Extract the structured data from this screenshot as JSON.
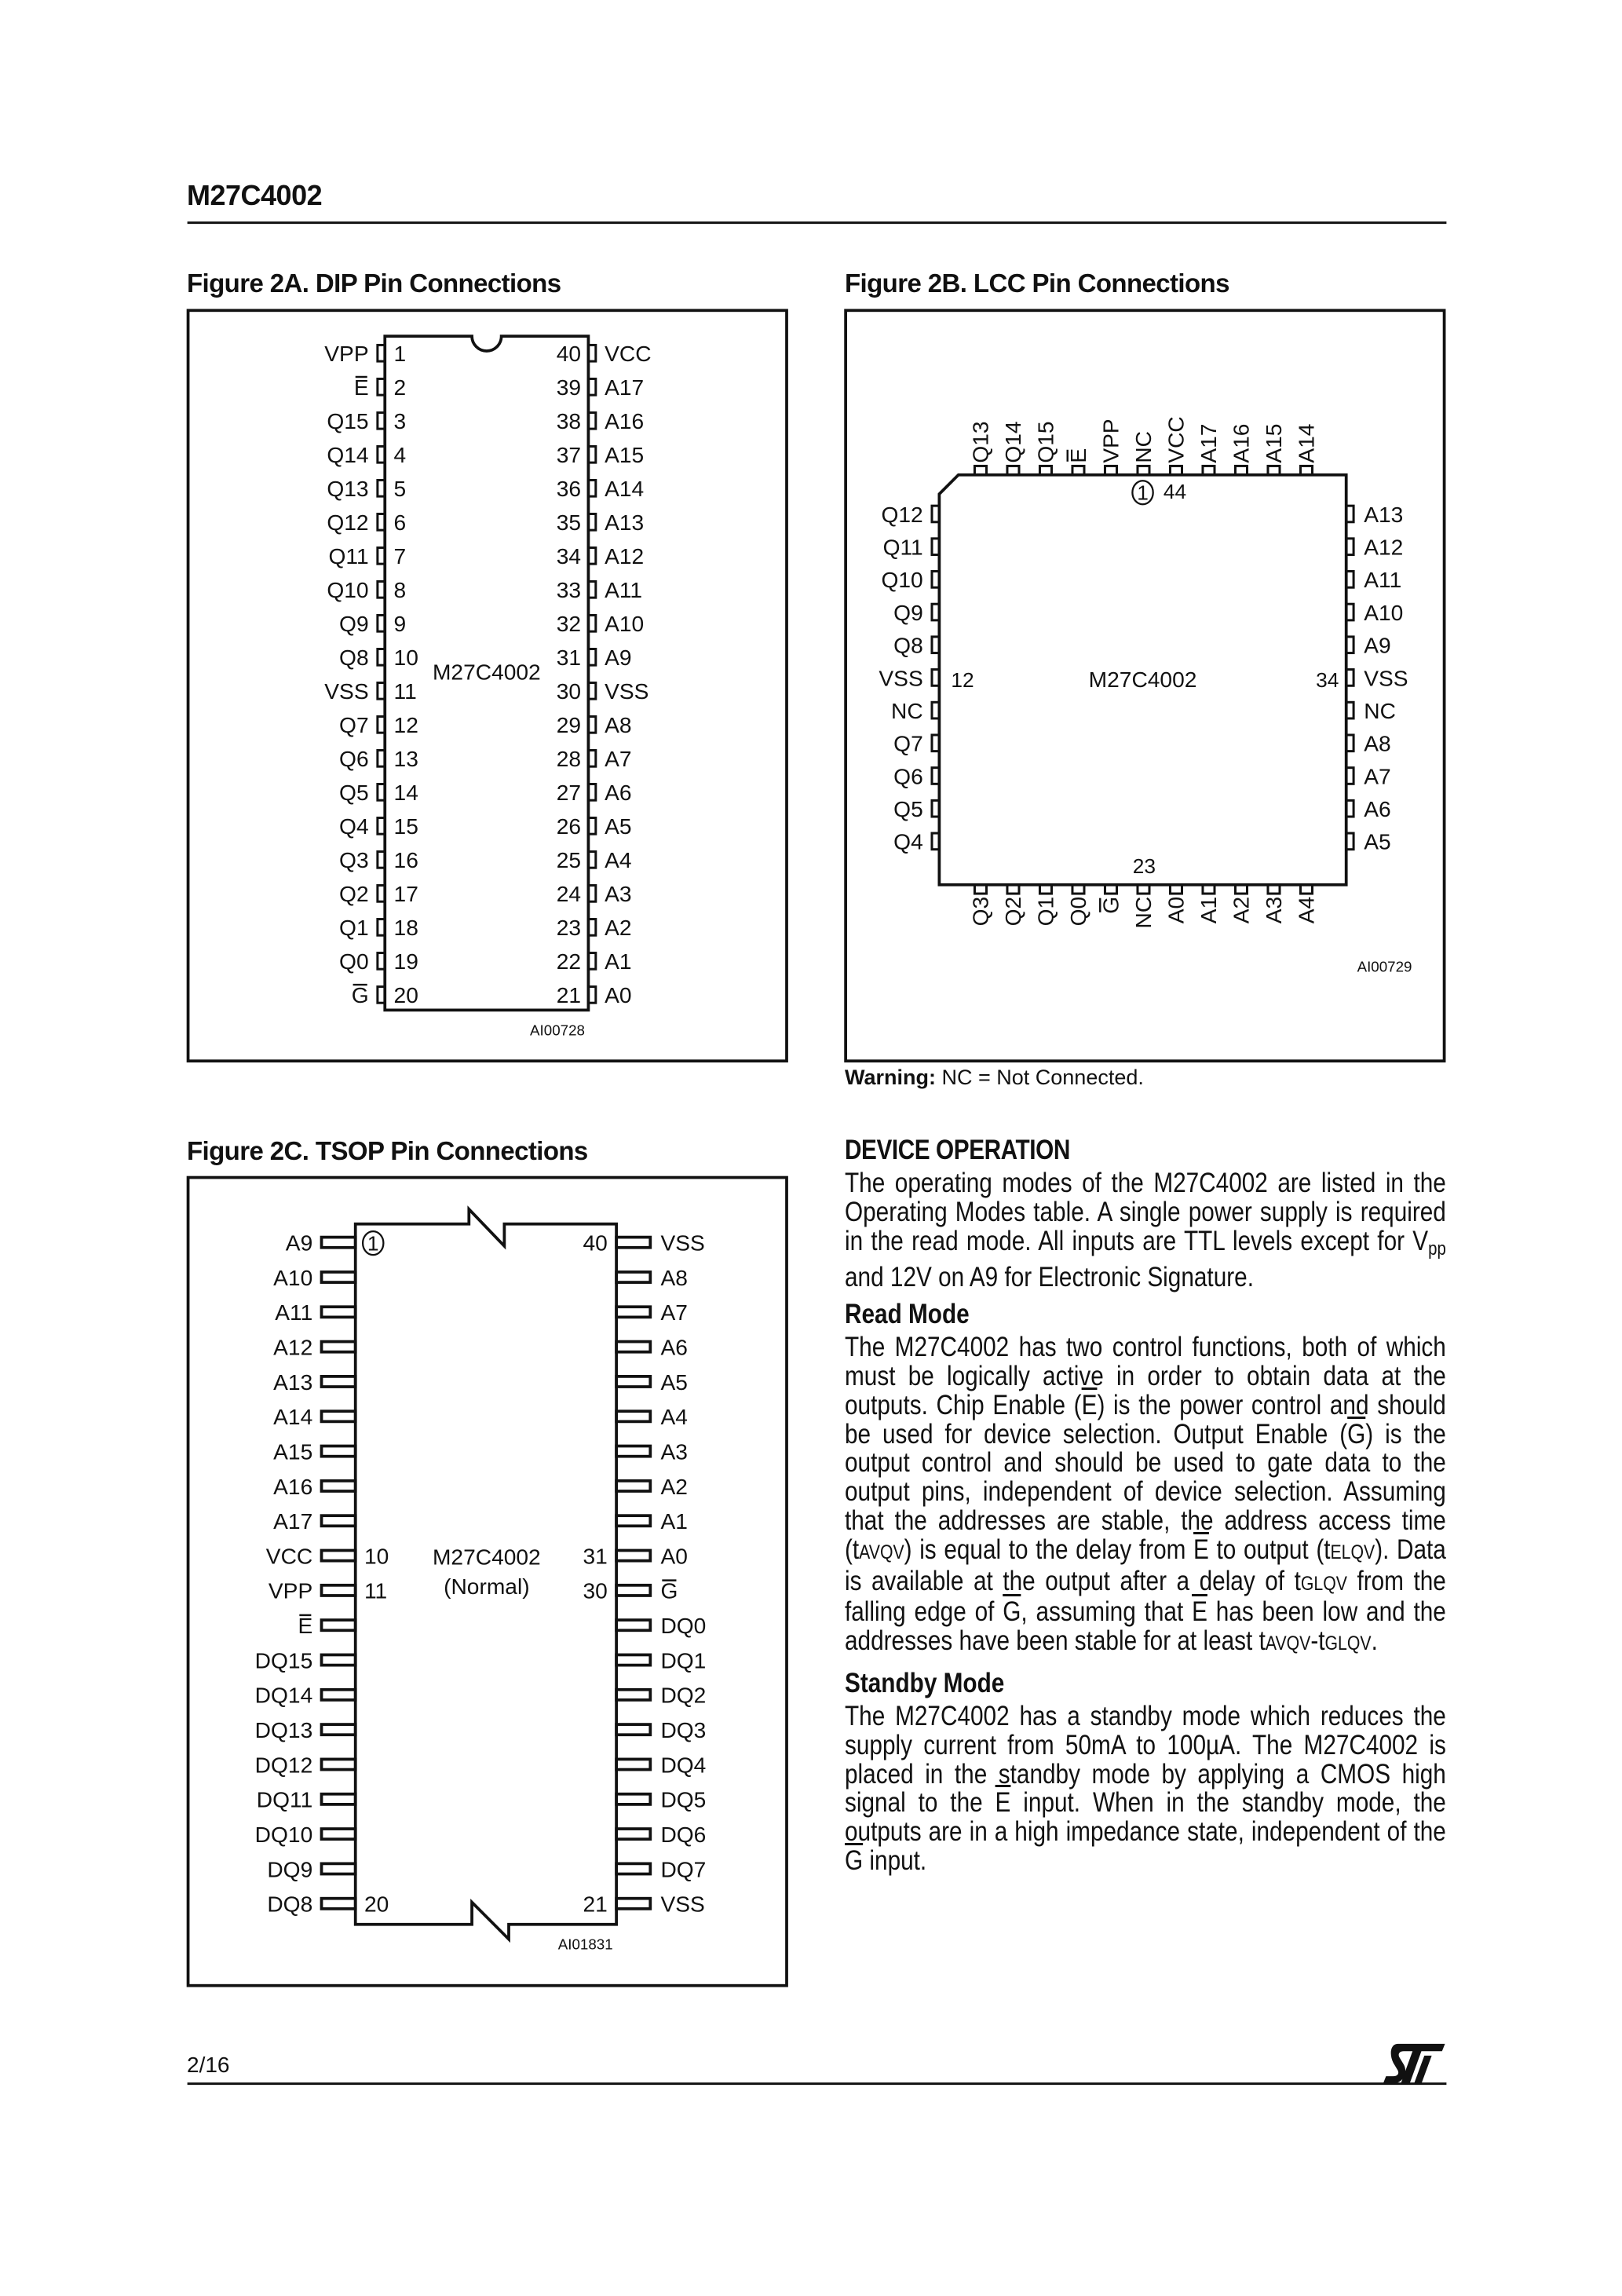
{
  "header": {
    "title": "M27C4002"
  },
  "overbar_signals": [
    "E",
    "G"
  ],
  "fig2a": {
    "title": "Figure 2A.  DIP Pin Connections",
    "chip_label": "M27C4002",
    "code": "AI00728",
    "left_pins": [
      [
        "1",
        "VPP"
      ],
      [
        "2",
        "E"
      ],
      [
        "3",
        "Q15"
      ],
      [
        "4",
        "Q14"
      ],
      [
        "5",
        "Q13"
      ],
      [
        "6",
        "Q12"
      ],
      [
        "7",
        "Q11"
      ],
      [
        "8",
        "Q10"
      ],
      [
        "9",
        "Q9"
      ],
      [
        "10",
        "Q8"
      ],
      [
        "11",
        "VSS"
      ],
      [
        "12",
        "Q7"
      ],
      [
        "13",
        "Q6"
      ],
      [
        "14",
        "Q5"
      ],
      [
        "15",
        "Q4"
      ],
      [
        "16",
        "Q3"
      ],
      [
        "17",
        "Q2"
      ],
      [
        "18",
        "Q1"
      ],
      [
        "19",
        "Q0"
      ],
      [
        "20",
        "G"
      ]
    ],
    "right_pins": [
      [
        "40",
        "VCC"
      ],
      [
        "39",
        "A17"
      ],
      [
        "38",
        "A16"
      ],
      [
        "37",
        "A15"
      ],
      [
        "36",
        "A14"
      ],
      [
        "35",
        "A13"
      ],
      [
        "34",
        "A12"
      ],
      [
        "33",
        "A11"
      ],
      [
        "32",
        "A10"
      ],
      [
        "31",
        "A9"
      ],
      [
        "30",
        "VSS"
      ],
      [
        "29",
        "A8"
      ],
      [
        "28",
        "A7"
      ],
      [
        "27",
        "A6"
      ],
      [
        "26",
        "A5"
      ],
      [
        "25",
        "A4"
      ],
      [
        "24",
        "A3"
      ],
      [
        "23",
        "A2"
      ],
      [
        "22",
        "A1"
      ],
      [
        "21",
        "A0"
      ]
    ]
  },
  "fig2b": {
    "title": "Figure 2B.  LCC Pin Connections",
    "chip_label": "M27C4002",
    "code": "AI00729",
    "top_pins": [
      "Q13",
      "Q14",
      "Q15",
      "E",
      "VPP",
      "NC",
      "VCC",
      "A17",
      "A16",
      "A15",
      "A14"
    ],
    "left_pins": [
      "Q12",
      "Q11",
      "Q10",
      "Q9",
      "Q8",
      "VSS",
      "NC",
      "Q7",
      "Q6",
      "Q5",
      "Q4"
    ],
    "right_pins": [
      "A13",
      "A12",
      "A11",
      "A10",
      "A9",
      "VSS",
      "NC",
      "A8",
      "A7",
      "A6",
      "A5"
    ],
    "bottom_pins": [
      "Q3",
      "Q2",
      "Q1",
      "Q0",
      "G",
      "NC",
      "A0",
      "A1",
      "A2",
      "A3",
      "A4"
    ],
    "number_labels": {
      "pin1": "1",
      "top": "44",
      "left": "12",
      "right": "34",
      "bottom": "23"
    },
    "warning_label": "Warning:",
    "warning_text": " NC = Not Connected."
  },
  "fig2c": {
    "title": "Figure 2C.  TSOP Pin Connections",
    "chip_label": "M27C4002",
    "chip_sublabel": "(Normal)",
    "code": "AI01831",
    "left_pins": [
      "A9",
      "A10",
      "A11",
      "A12",
      "A13",
      "A14",
      "A15",
      "A16",
      "A17",
      "VCC",
      "VPP",
      "E",
      "DQ15",
      "DQ14",
      "DQ13",
      "DQ12",
      "DQ11",
      "DQ10",
      "DQ9",
      "DQ8"
    ],
    "right_pins": [
      "VSS",
      "A8",
      "A7",
      "A6",
      "A5",
      "A4",
      "A3",
      "A2",
      "A1",
      "A0",
      "G",
      "DQ0",
      "DQ1",
      "DQ2",
      "DQ3",
      "DQ4",
      "DQ5",
      "DQ6",
      "DQ7",
      "VSS"
    ],
    "number_labels": [
      "1",
      "10",
      "11",
      "20",
      "40",
      "31",
      "30",
      "21"
    ]
  },
  "text": {
    "heading": "DEVICE OPERATION",
    "para1": [
      {
        "t": "The operating modes of the M27C4002 are listed in the Operating Modes table. A single power supply is required in the read mode.  All inputs are TTL levels except for V"
      },
      {
        "t": "pp",
        "s": "sub"
      },
      {
        "t": " and 12V on A9 for Electronic Signature."
      }
    ],
    "read_heading": "Read Mode",
    "para2": [
      {
        "t": "The M27C4002 has two control functions, both of which must be logically active in order to obtain data at the outputs. Chip Enable ("
      },
      {
        "t": "E",
        "s": "ov"
      },
      {
        "t": ") is the power control and should be used for device selection. Output Enable ("
      },
      {
        "t": "G",
        "s": "ov"
      },
      {
        "t": ") is the output control and should be used to gate data to the output pins, independent of device selection.  Assuming that the addresses are stable, the address access time (t"
      },
      {
        "t": "AVQV",
        "s": "sc"
      },
      {
        "t": ") is equal to the delay from "
      },
      {
        "t": "E",
        "s": "ov"
      },
      {
        "t": " to output (t"
      },
      {
        "t": "ELQV",
        "s": "sc"
      },
      {
        "t": "). Data is available at the output after a delay of t"
      },
      {
        "t": "GLQV",
        "s": "sc"
      },
      {
        "t": " from the falling edge of "
      },
      {
        "t": "G",
        "s": "ov"
      },
      {
        "t": ", assuming that "
      },
      {
        "t": "E",
        "s": "ov"
      },
      {
        "t": " has been low and the addresses have been stable for at least t"
      },
      {
        "t": "AVQV",
        "s": "sc"
      },
      {
        "t": "-t"
      },
      {
        "t": "GLQV",
        "s": "sc"
      },
      {
        "t": "."
      }
    ],
    "standby_heading": "Standby Mode",
    "para3": [
      {
        "t": "The M27C4002 has a standby mode which reduces the supply current from 50mA to 100µA. The M27C4002 is placed in the standby mode by applying a CMOS high signal to the "
      },
      {
        "t": "E",
        "s": "ov"
      },
      {
        "t": " input.  When in the standby mode, the outputs are in a high impedance state, independent of the "
      },
      {
        "t": "G",
        "s": "ov"
      },
      {
        "t": " input."
      }
    ]
  },
  "footer": {
    "page": "2/16",
    "logo": "ST"
  }
}
